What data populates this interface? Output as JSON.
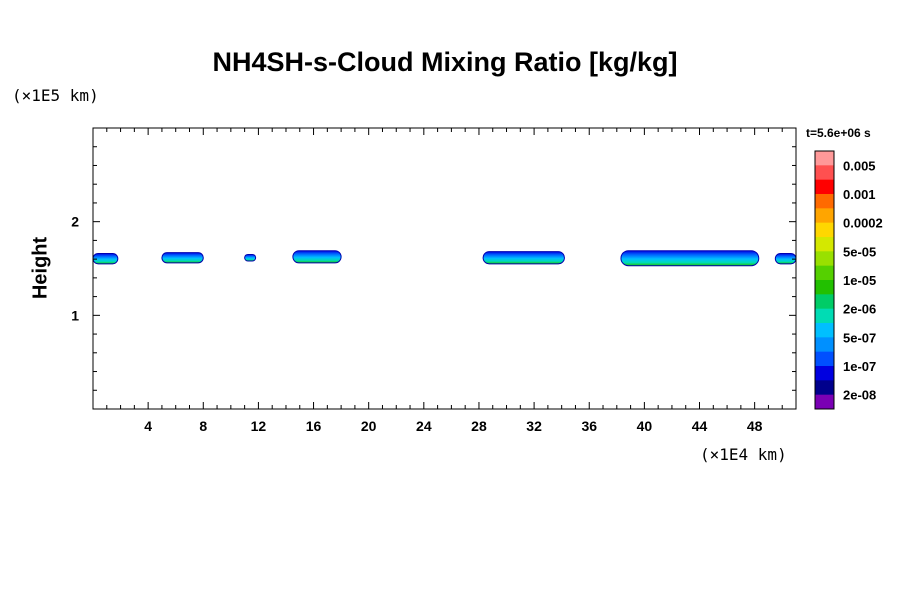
{
  "chart_data": {
    "type": "heatmap",
    "title": "NH4SH-s-Cloud Mixing Ratio [kg/kg]",
    "ylabel": "Height",
    "y_unit": "(×1E5 km)",
    "x_unit": "(×1E4 km)",
    "time_label": "t=5.6e+06 s",
    "xlim": [
      0,
      51
    ],
    "ylim": [
      0,
      3
    ],
    "x_ticks": [
      4,
      8,
      12,
      16,
      20,
      24,
      28,
      32,
      36,
      40,
      44,
      48
    ],
    "y_ticks": [
      1,
      2
    ],
    "colorbar": {
      "labels": [
        "0.005",
        "0.001",
        "0.0002",
        "5e-05",
        "1e-05",
        "2e-06",
        "5e-07",
        "1e-07",
        "2e-08"
      ],
      "colors": [
        "#ff9999",
        "#ff5050",
        "#ff0000",
        "#ff6a00",
        "#ffa500",
        "#ffd700",
        "#d4e800",
        "#99e000",
        "#55d000",
        "#22c000",
        "#00cc66",
        "#00dcb4",
        "#00bfff",
        "#0090ff",
        "#0050ff",
        "#0000e0",
        "#00008c",
        "#7a00b4"
      ]
    },
    "cloud_layers": [
      {
        "x_start": 0.0,
        "x_end": 1.8,
        "y_bottom": 1.55,
        "y_top": 1.66
      },
      {
        "x_start": 5.0,
        "x_end": 8.0,
        "y_bottom": 1.56,
        "y_top": 1.67
      },
      {
        "x_start": 11.0,
        "x_end": 11.8,
        "y_bottom": 1.58,
        "y_top": 1.65
      },
      {
        "x_start": 14.5,
        "x_end": 18.0,
        "y_bottom": 1.56,
        "y_top": 1.69
      },
      {
        "x_start": 28.3,
        "x_end": 34.2,
        "y_bottom": 1.55,
        "y_top": 1.68
      },
      {
        "x_start": 38.3,
        "x_end": 48.3,
        "y_bottom": 1.53,
        "y_top": 1.69
      },
      {
        "x_start": 49.5,
        "x_end": 51.0,
        "y_bottom": 1.55,
        "y_top": 1.66
      }
    ]
  }
}
